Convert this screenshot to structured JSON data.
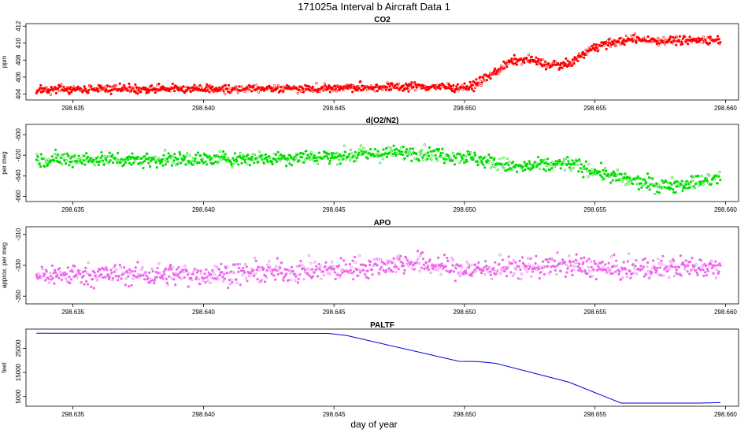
{
  "figure": {
    "title": "171025a   Interval b Aircraft Data 1",
    "xlabel": "day of year"
  },
  "chart_data": [
    {
      "type": "scatter",
      "title": "CO2",
      "ylabel": "ppm",
      "color": "#ff0000",
      "xlim": [
        298.6332,
        298.6605
      ],
      "ylim": [
        403.3,
        412.3
      ],
      "xticks": [
        "298.635",
        "298.640",
        "298.645",
        "298.650",
        "298.655",
        "298.660"
      ],
      "yticks": [
        "404",
        "406",
        "408",
        "410",
        "412"
      ],
      "x_range": [
        298.6336,
        298.6598
      ],
      "profile": [
        [
          298.6336,
          404.6
        ],
        [
          298.64,
          404.6
        ],
        [
          298.645,
          404.7
        ],
        [
          298.648,
          404.9
        ],
        [
          298.6502,
          404.8
        ],
        [
          298.651,
          406.2
        ],
        [
          298.6518,
          407.9
        ],
        [
          298.6525,
          408.1
        ],
        [
          298.6532,
          407.4
        ],
        [
          298.654,
          407.5
        ],
        [
          298.655,
          409.6
        ],
        [
          298.6556,
          410.0
        ],
        [
          298.6565,
          410.5
        ],
        [
          298.6575,
          410.3
        ],
        [
          298.6598,
          410.4
        ]
      ],
      "noise": 0.35,
      "count": 1100
    },
    {
      "type": "scatter",
      "title": "d(O2/N2)",
      "ylabel": "per meg",
      "color": "#00dd00",
      "xlim": [
        298.6332,
        298.6605
      ],
      "ylim": [
        -665,
        -590
      ],
      "xticks": [
        "298.635",
        "298.640",
        "298.645",
        "298.650",
        "298.655",
        "298.660"
      ],
      "yticks": [
        "-600",
        "-620",
        "-640",
        "-660"
      ],
      "x_range": [
        298.6336,
        298.6598
      ],
      "profile": [
        [
          298.6336,
          -624
        ],
        [
          298.64,
          -624
        ],
        [
          298.645,
          -621
        ],
        [
          298.648,
          -617
        ],
        [
          298.6502,
          -622
        ],
        [
          298.652,
          -632
        ],
        [
          298.654,
          -628
        ],
        [
          298.656,
          -643
        ],
        [
          298.6575,
          -650
        ],
        [
          298.6598,
          -643
        ]
      ],
      "noise": 5,
      "count": 1000
    },
    {
      "type": "scatter",
      "title": "APO",
      "ylabel": "approx. per meg",
      "color": "#ee66ee",
      "xlim": [
        298.6332,
        298.6605
      ],
      "ylim": [
        -355,
        -305
      ],
      "xticks": [
        "298.635",
        "298.640",
        "298.645",
        "298.650",
        "298.655",
        "298.660"
      ],
      "yticks": [
        "-310",
        "-330",
        "-350"
      ],
      "x_range": [
        298.6336,
        298.6598
      ],
      "profile": [
        [
          298.6336,
          -336
        ],
        [
          298.64,
          -336
        ],
        [
          298.645,
          -333
        ],
        [
          298.648,
          -328
        ],
        [
          298.65,
          -333
        ],
        [
          298.654,
          -330
        ],
        [
          298.656,
          -333
        ],
        [
          298.6598,
          -330
        ]
      ],
      "noise": 5,
      "count": 1000
    },
    {
      "type": "line",
      "title": "PALTF",
      "ylabel": "feet",
      "color": "#0000dd",
      "xlim": [
        298.6332,
        298.6605
      ],
      "ylim": [
        1000,
        33000
      ],
      "xticks": [
        "298.635",
        "298.640",
        "298.645",
        "298.650",
        "298.655",
        "298.660"
      ],
      "yticks": [
        "5000",
        "15000",
        "25000"
      ],
      "points": [
        [
          298.6336,
          31300
        ],
        [
          298.64,
          31200
        ],
        [
          298.6448,
          31200
        ],
        [
          298.6455,
          30300
        ],
        [
          298.6498,
          19600
        ],
        [
          298.6505,
          19500
        ],
        [
          298.6512,
          18800
        ],
        [
          298.654,
          11000
        ],
        [
          298.656,
          2300
        ],
        [
          298.659,
          2300
        ],
        [
          298.6598,
          2500
        ]
      ]
    }
  ]
}
